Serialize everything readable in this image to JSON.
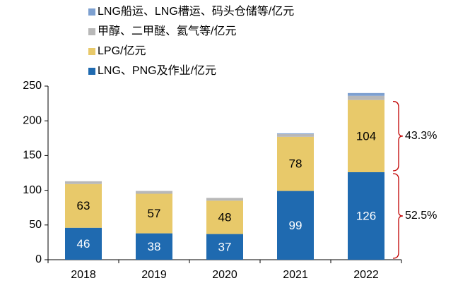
{
  "chart_data": {
    "type": "stacked_bar",
    "categories": [
      "2018",
      "2019",
      "2020",
      "2021",
      "2022"
    ],
    "series": [
      {
        "name": "LNG、PNG及作业/亿元",
        "color": "#1f6ab0",
        "values": [
          46,
          38,
          37,
          99,
          126
        ],
        "show_labels": true
      },
      {
        "name": "LPG/亿元",
        "color": "#e8c96a",
        "values": [
          63,
          57,
          48,
          78,
          104
        ],
        "show_labels": true
      },
      {
        "name": "甲醇、二甲醚、氦气等/亿元",
        "color": "#b8b8b8",
        "values": [
          4,
          4,
          4,
          4,
          6
        ],
        "show_labels": false
      },
      {
        "name": "LNG船运、LNG槽运、码头仓储等/亿元",
        "color": "#7da0d0",
        "values": [
          0,
          0,
          0,
          1,
          4
        ],
        "show_labels": false
      }
    ],
    "annotations": [
      "43.3%",
      "52.5%"
    ],
    "ylim": [
      0,
      250
    ],
    "yticks": [
      0,
      50,
      100,
      150,
      200,
      250
    ]
  }
}
